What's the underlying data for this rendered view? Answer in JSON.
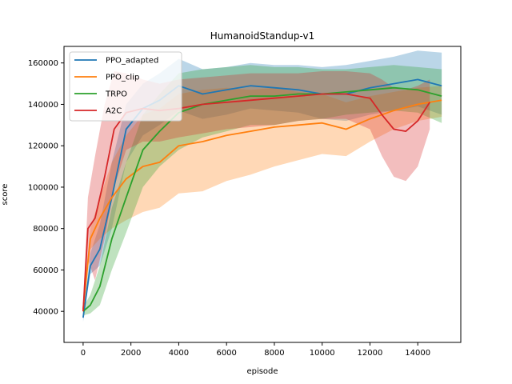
{
  "chart_data": {
    "type": "line",
    "title": "HumanoidStandup-v1",
    "xlabel": "episode",
    "ylabel": "score",
    "xlim": [
      -800,
      15800
    ],
    "ylim": [
      25000,
      168000
    ],
    "xticks": [
      0,
      2000,
      4000,
      6000,
      8000,
      10000,
      12000,
      14000
    ],
    "yticks": [
      40000,
      60000,
      80000,
      100000,
      120000,
      140000,
      160000
    ],
    "legend": "top-left",
    "series": [
      {
        "name": "PPO_adapted",
        "color": "#1f77b4",
        "x": [
          0,
          300,
          700,
          1200,
          1800,
          2500,
          3200,
          4000,
          5000,
          6000,
          7000,
          8000,
          9000,
          10000,
          11000,
          12000,
          13000,
          14000,
          15000
        ],
        "y": [
          37000,
          62000,
          70000,
          95000,
          128000,
          138000,
          142000,
          149000,
          145000,
          147000,
          149000,
          148000,
          147000,
          145000,
          145000,
          148000,
          150000,
          152000,
          149000
        ],
        "upper": [
          40000,
          68000,
          82000,
          112000,
          140000,
          150000,
          155000,
          162000,
          157000,
          158000,
          160000,
          159000,
          159000,
          158000,
          159000,
          161000,
          163000,
          166000,
          165000
        ],
        "lower": [
          35000,
          58000,
          62000,
          80000,
          112000,
          125000,
          130000,
          137000,
          133000,
          135000,
          138000,
          137000,
          136000,
          133000,
          132000,
          135000,
          137000,
          139000,
          135000
        ]
      },
      {
        "name": "PPO_clip",
        "color": "#ff7f0e",
        "x": [
          0,
          300,
          700,
          1200,
          1800,
          2500,
          3200,
          4000,
          5000,
          6000,
          7000,
          8000,
          9000,
          10000,
          11000,
          12000,
          13000,
          14000,
          15000
        ],
        "y": [
          41000,
          75000,
          85000,
          95000,
          104000,
          110000,
          112000,
          120000,
          122000,
          125000,
          127000,
          129000,
          130000,
          131000,
          128000,
          133000,
          137000,
          140000,
          142000
        ],
        "upper": [
          44000,
          80000,
          95000,
          112000,
          125000,
          135000,
          138000,
          145000,
          147000,
          148000,
          147000,
          148000,
          146000,
          145000,
          141000,
          144000,
          146000,
          148000,
          149000
        ],
        "lower": [
          38000,
          70000,
          75000,
          80000,
          84000,
          88000,
          90000,
          97000,
          98000,
          103000,
          106000,
          110000,
          113000,
          116000,
          115000,
          122000,
          128000,
          132000,
          134000
        ]
      },
      {
        "name": "TRPO",
        "color": "#2ca02c",
        "x": [
          0,
          300,
          700,
          1200,
          1800,
          2500,
          3200,
          4000,
          5000,
          6000,
          7000,
          8000,
          9000,
          10000,
          11000,
          12000,
          13000,
          14000,
          15000
        ],
        "y": [
          40000,
          43000,
          52000,
          75000,
          95000,
          118000,
          127000,
          136000,
          140000,
          142000,
          144000,
          144000,
          145000,
          145000,
          146000,
          147000,
          148000,
          147000,
          144000
        ],
        "upper": [
          42000,
          48000,
          62000,
          90000,
          112000,
          135000,
          145000,
          155000,
          157000,
          158000,
          159000,
          158000,
          158000,
          157000,
          157000,
          158000,
          159000,
          158000,
          157000
        ],
        "lower": [
          38000,
          39000,
          43000,
          60000,
          78000,
          100000,
          110000,
          118000,
          124000,
          127000,
          130000,
          130000,
          132000,
          133000,
          135000,
          136000,
          137000,
          136000,
          131000
        ]
      },
      {
        "name": "A2C",
        "color": "#d62728",
        "x": [
          0,
          200,
          500,
          900,
          1300,
          1800,
          2500,
          3200,
          4000,
          5000,
          6000,
          7000,
          8000,
          9000,
          10000,
          11000,
          12000,
          12500,
          13000,
          13500,
          14000,
          14500
        ],
        "y": [
          40000,
          80000,
          85000,
          105000,
          128000,
          136000,
          138000,
          137000,
          138000,
          140000,
          141000,
          142000,
          143000,
          144000,
          145000,
          145000,
          143000,
          135000,
          128000,
          127000,
          132000,
          141000
        ],
        "upper": [
          44000,
          95000,
          115000,
          140000,
          156000,
          155000,
          152000,
          150000,
          152000,
          153000,
          154000,
          155000,
          155000,
          155000,
          156000,
          156000,
          155000,
          152000,
          148000,
          147000,
          149000,
          152000
        ],
        "lower": [
          36000,
          65000,
          55000,
          75000,
          100000,
          118000,
          122000,
          122000,
          124000,
          126000,
          128000,
          129000,
          130000,
          132000,
          133000,
          133000,
          128000,
          115000,
          105000,
          103000,
          110000,
          128000
        ]
      }
    ]
  }
}
